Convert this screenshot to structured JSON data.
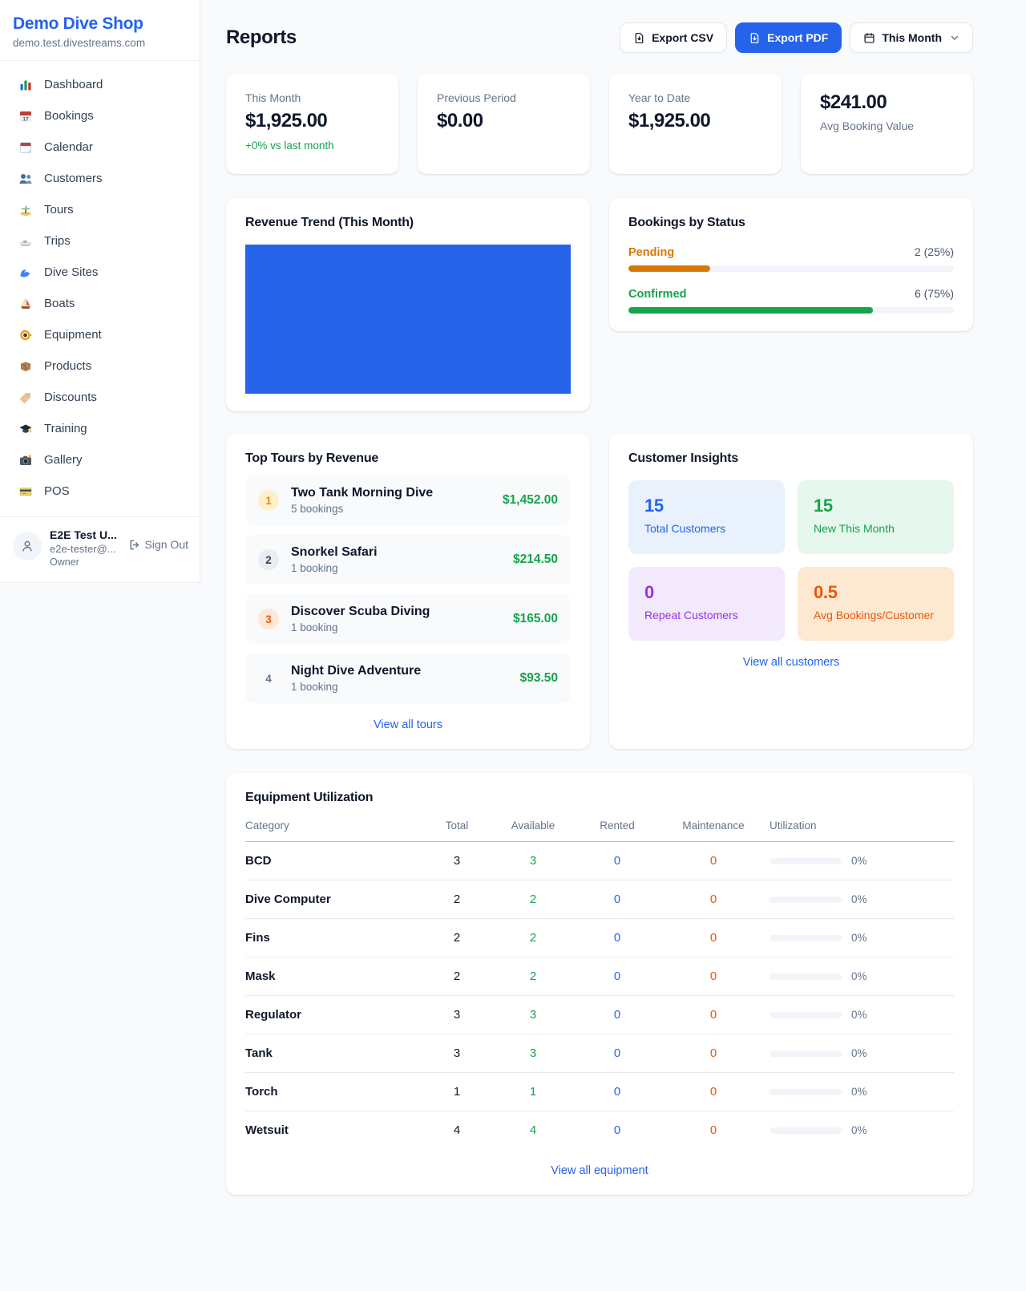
{
  "colors": {
    "accent_blue": "#2563eb",
    "success_green": "#16a34a",
    "pending_orange": "#d97706",
    "maintenance_orange": "#ea580c",
    "repeat_purple": "#9333ea",
    "page_background": "#f8fafc"
  },
  "sidebar": {
    "shop_name": "Demo Dive Shop",
    "shop_domain": "demo.test.divestreams.com",
    "nav": [
      {
        "label": "Dashboard",
        "icon": "bar-chart-icon"
      },
      {
        "label": "Bookings",
        "icon": "calendar-date-icon"
      },
      {
        "label": "Calendar",
        "icon": "tear-off-calendar-icon"
      },
      {
        "label": "Customers",
        "icon": "people-icon"
      },
      {
        "label": "Tours",
        "icon": "island-icon"
      },
      {
        "label": "Trips",
        "icon": "speedboat-icon"
      },
      {
        "label": "Dive Sites",
        "icon": "wave-icon"
      },
      {
        "label": "Boats",
        "icon": "sailboat-icon"
      },
      {
        "label": "Equipment",
        "icon": "dive-mask-icon"
      },
      {
        "label": "Products",
        "icon": "package-icon"
      },
      {
        "label": "Discounts",
        "icon": "tag-icon"
      },
      {
        "label": "Training",
        "icon": "graduation-cap-icon"
      },
      {
        "label": "Gallery",
        "icon": "camera-icon"
      },
      {
        "label": "POS",
        "icon": "credit-card-icon"
      }
    ],
    "user": {
      "name": "E2E Test U...",
      "email": "e2e-tester@...",
      "role": "Owner",
      "sign_out_label": "Sign Out"
    }
  },
  "header": {
    "title": "Reports",
    "export_csv_label": "Export CSV",
    "export_pdf_label": "Export PDF",
    "period_label": "This Month"
  },
  "stats": [
    {
      "label": "This Month",
      "value": "$1,925.00",
      "delta": "+0% vs last month"
    },
    {
      "label": "Previous Period",
      "value": "$0.00"
    },
    {
      "label": "Year to Date",
      "value": "$1,925.00"
    },
    {
      "label": "Avg Booking Value",
      "value": "$241.00"
    }
  ],
  "revenue_trend": {
    "title": "Revenue Trend (This Month)",
    "bar_color": "#2563eb",
    "bar_fill_pct": 100
  },
  "bookings_by_status": {
    "title": "Bookings by Status",
    "rows": [
      {
        "label": "Pending",
        "count_text": "2 (25%)",
        "pct": 25
      },
      {
        "label": "Confirmed",
        "count_text": "6 (75%)",
        "pct": 75
      }
    ]
  },
  "top_tours": {
    "title": "Top Tours by Revenue",
    "items": [
      {
        "rank": "1",
        "name": "Two Tank Morning Dive",
        "bookings": "5 bookings",
        "amount": "$1,452.00"
      },
      {
        "rank": "2",
        "name": "Snorkel Safari",
        "bookings": "1 booking",
        "amount": "$214.50"
      },
      {
        "rank": "3",
        "name": "Discover Scuba Diving",
        "bookings": "1 booking",
        "amount": "$165.00"
      },
      {
        "rank": "4",
        "name": "Night Dive Adventure",
        "bookings": "1 booking",
        "amount": "$93.50"
      }
    ],
    "view_all_label": "View all tours"
  },
  "customer_insights": {
    "title": "Customer Insights",
    "tiles": [
      {
        "value": "15",
        "label": "Total Customers"
      },
      {
        "value": "15",
        "label": "New This Month"
      },
      {
        "value": "0",
        "label": "Repeat Customers"
      },
      {
        "value": "0.5",
        "label": "Avg Bookings/Customer"
      }
    ],
    "view_all_label": "View all customers"
  },
  "equipment": {
    "title": "Equipment Utilization",
    "columns": [
      "Category",
      "Total",
      "Available",
      "Rented",
      "Maintenance",
      "Utilization"
    ],
    "rows": [
      {
        "category": "BCD",
        "total": "3",
        "available": "3",
        "rented": "0",
        "maintenance": "0",
        "utilization_pct": 0,
        "utilization_label": "0%"
      },
      {
        "category": "Dive Computer",
        "total": "2",
        "available": "2",
        "rented": "0",
        "maintenance": "0",
        "utilization_pct": 0,
        "utilization_label": "0%"
      },
      {
        "category": "Fins",
        "total": "2",
        "available": "2",
        "rented": "0",
        "maintenance": "0",
        "utilization_pct": 0,
        "utilization_label": "0%"
      },
      {
        "category": "Mask",
        "total": "2",
        "available": "2",
        "rented": "0",
        "maintenance": "0",
        "utilization_pct": 0,
        "utilization_label": "0%"
      },
      {
        "category": "Regulator",
        "total": "3",
        "available": "3",
        "rented": "0",
        "maintenance": "0",
        "utilization_pct": 0,
        "utilization_label": "0%"
      },
      {
        "category": "Tank",
        "total": "3",
        "available": "3",
        "rented": "0",
        "maintenance": "0",
        "utilization_pct": 0,
        "utilization_label": "0%"
      },
      {
        "category": "Torch",
        "total": "1",
        "available": "1",
        "rented": "0",
        "maintenance": "0",
        "utilization_pct": 0,
        "utilization_label": "0%"
      },
      {
        "category": "Wetsuit",
        "total": "4",
        "available": "4",
        "rented": "0",
        "maintenance": "0",
        "utilization_pct": 0,
        "utilization_label": "0%"
      }
    ],
    "view_all_label": "View all equipment"
  }
}
